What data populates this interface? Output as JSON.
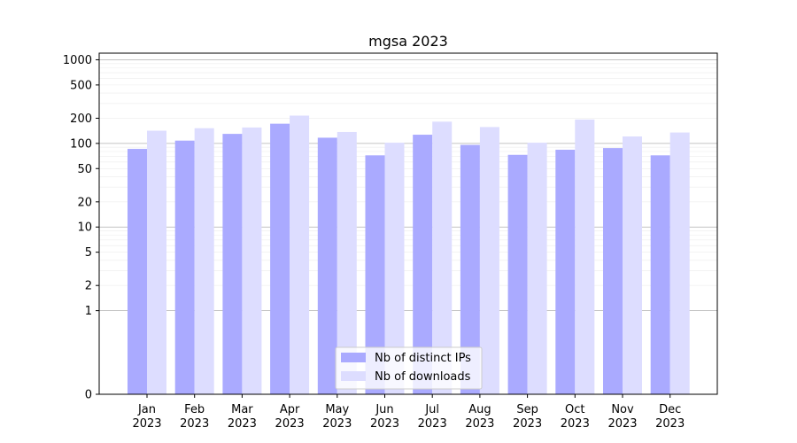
{
  "chart_data": {
    "type": "bar",
    "title": "mgsa 2023",
    "xlabel": "",
    "ylabel": "",
    "yscale": "symlog",
    "ylim": [
      0,
      1200
    ],
    "y_ticks": [
      0,
      1,
      2,
      5,
      10,
      20,
      50,
      100,
      200,
      500,
      1000
    ],
    "grid": true,
    "legend_position": "lower center",
    "categories": [
      [
        "Jan",
        "2023"
      ],
      [
        "Feb",
        "2023"
      ],
      [
        "Mar",
        "2023"
      ],
      [
        "Apr",
        "2023"
      ],
      [
        "May",
        "2023"
      ],
      [
        "Jun",
        "2023"
      ],
      [
        "Jul",
        "2023"
      ],
      [
        "Aug",
        "2023"
      ],
      [
        "Sep",
        "2023"
      ],
      [
        "Oct",
        "2023"
      ],
      [
        "Nov",
        "2023"
      ],
      [
        "Dec",
        "2023"
      ]
    ],
    "series": [
      {
        "name": "Nb of distinct IPs",
        "color": "#aaaaff",
        "values": [
          86,
          108,
          130,
          172,
          117,
          72,
          127,
          96,
          73,
          84,
          88,
          72
        ]
      },
      {
        "name": "Nb of downloads",
        "color": "#ddddff",
        "values": [
          142,
          152,
          155,
          215,
          137,
          102,
          182,
          157,
          102,
          193,
          121,
          135
        ]
      }
    ]
  }
}
